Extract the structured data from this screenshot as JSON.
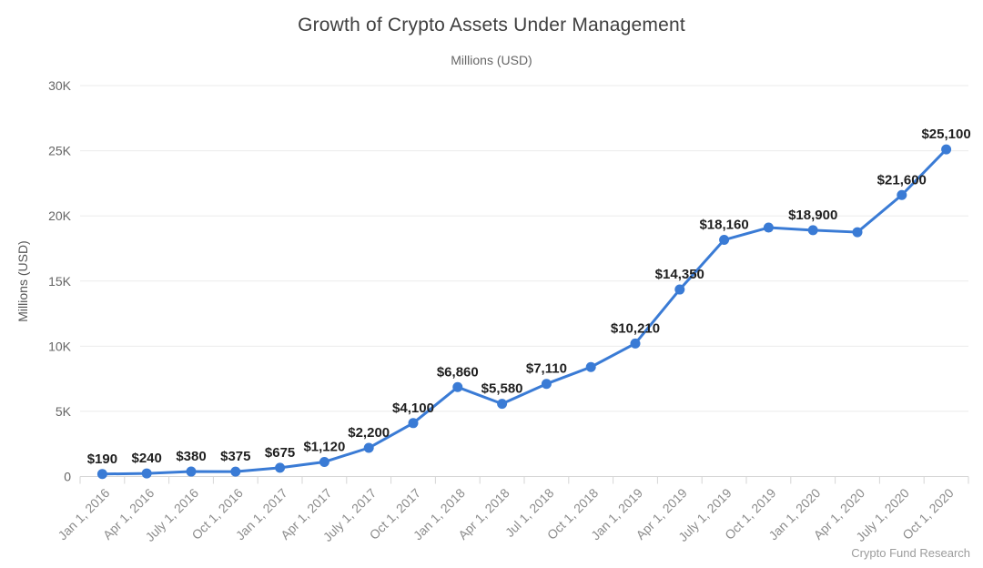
{
  "header": {
    "title": "Growth of Crypto Assets Under Management",
    "subtitle": "Millions (USD)"
  },
  "credit": "Crypto Fund Research",
  "chart_data": {
    "type": "line",
    "title": "Growth of Crypto Assets Under Management",
    "subtitle": "Millions (USD)",
    "ylabel": "Millions (USD)",
    "xlabel": "",
    "x": [
      "Jan 1, 2016",
      "Apr 1, 2016",
      "July 1, 2016",
      "Oct 1, 2016",
      "Jan 1, 2017",
      "Apr 1, 2017",
      "July 1, 2017",
      "Oct 1, 2017",
      "Jan 1, 2018",
      "Apr 1, 2018",
      "Jul 1, 2018",
      "Oct 1, 2018",
      "Jan 1, 2019",
      "Apr 1, 2019",
      "July 1, 2019",
      "Oct 1, 2019",
      "Jan 1, 2020",
      "Apr 1, 2020",
      "July 1, 2020",
      "Oct 1, 2020"
    ],
    "series": [
      {
        "name": "Crypto Assets Under Management",
        "values": [
          190,
          240,
          380,
          375,
          675,
          1120,
          2200,
          4100,
          6860,
          5580,
          7110,
          8400,
          10210,
          14350,
          18160,
          19100,
          18900,
          18750,
          21600,
          25100
        ],
        "point_labels": [
          "$190",
          "$240",
          "$380",
          "$375",
          "$675",
          "$1,120",
          "$2,200",
          "$4,100",
          "$6,860",
          "$5,580",
          "$7,110",
          null,
          "$10,210",
          "$14,350",
          "$18,160",
          null,
          "$18,900",
          null,
          "$21,600",
          "$25,100"
        ]
      }
    ],
    "ylim": [
      0,
      30000
    ],
    "yticks": {
      "values": [
        0,
        5000,
        10000,
        15000,
        20000,
        25000,
        30000
      ],
      "labels": [
        "0",
        "5K",
        "10K",
        "15K",
        "20K",
        "25K",
        "30K"
      ]
    },
    "grid": "horizontal",
    "legend": "none",
    "colors": {
      "line": "#3a7bd5",
      "marker": "#3a7bd5",
      "grid": "#ebebeb",
      "axis": "#d6d6d6",
      "tick": "#d6d6d6",
      "data_label": "#1f1f1f",
      "x_tick_label": "#8c8c8c",
      "y_tick_label": "#666666"
    }
  }
}
